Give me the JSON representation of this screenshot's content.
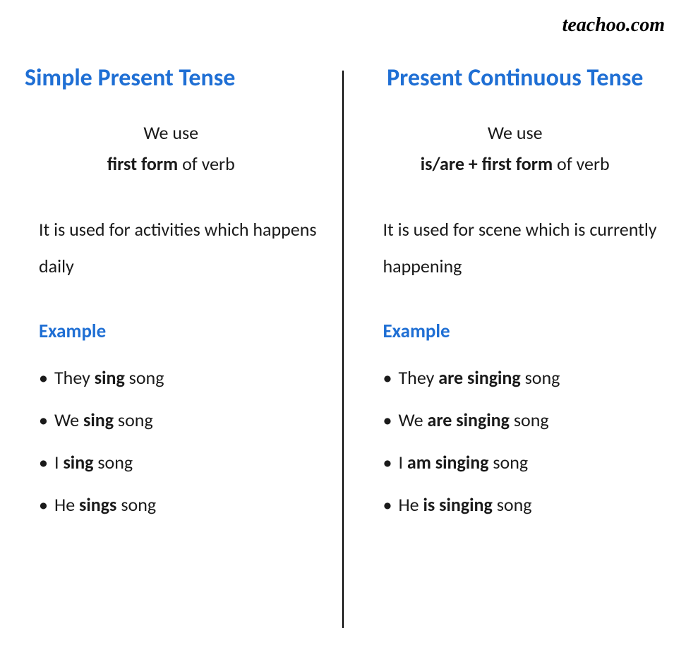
{
  "brand": "teachoo.com",
  "colors": {
    "heading": "#1f6fd4",
    "text": "#1a1a1a",
    "background": "#ffffff",
    "divider": "#000000"
  },
  "typography": {
    "title_fontsize": 34,
    "body_fontsize": 26,
    "brand_fontsize": 28,
    "brand_font": "Comic Sans MS"
  },
  "left": {
    "title": "Simple Present Tense",
    "usage_line1": "We use",
    "usage_bold": "first form",
    "usage_after": " of verb",
    "description": "It is used for activities which happens daily",
    "example_heading": "Example",
    "examples": [
      {
        "pre": "They ",
        "bold": "sing",
        "post": " song"
      },
      {
        "pre": "We ",
        "bold": "sing",
        "post": " song"
      },
      {
        "pre": "I ",
        "bold": "sing",
        "post": " song"
      },
      {
        "pre": "He ",
        "bold": "sings",
        "post": " song"
      }
    ]
  },
  "right": {
    "title": "Present Continuous Tense",
    "usage_line1": "We use",
    "usage_bold": "is/are + first form",
    "usage_after": " of verb",
    "description": "It is used for scene which is currently happening",
    "example_heading": "Example",
    "examples": [
      {
        "pre": "They ",
        "bold": "are singing",
        "post": " song"
      },
      {
        "pre": "We ",
        "bold": "are singing",
        "post": " song"
      },
      {
        "pre": "I ",
        "bold": "am singing",
        "post": " song"
      },
      {
        "pre": "He ",
        "bold": "is singing",
        "post": " song"
      }
    ]
  }
}
